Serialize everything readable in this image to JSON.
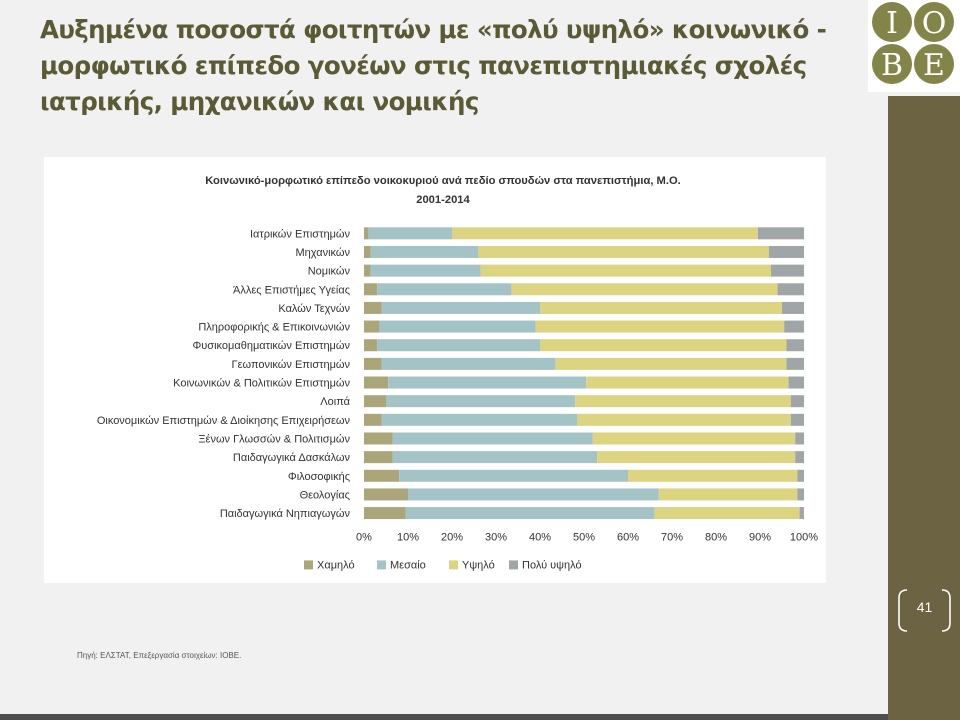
{
  "slide": {
    "title": "Αυξημένα ποσοστά φοιτητών με «πολύ υψηλό» κοινωνικό - μορφωτικό επίπεδο γονέων στις πανεπιστημιακές σχολές ιατρικής, μηχανικών και νομικής",
    "page_number": "41",
    "source": "Πηγή: ΕΛΣΤΑΤ, Επεξεργασία στοιχείων: ΙΟΒΕ.",
    "logo_text": {
      "l1": "Ι",
      "l2": "Ο",
      "l3": "Β",
      "l4": "Ε"
    }
  },
  "colors": {
    "title": "#5a5a34",
    "accent_bar": "#6c6343",
    "logo_circle": "#838548",
    "series": [
      "#aaa67a",
      "#a4c3c6",
      "#dcd480",
      "#a0a6a8"
    ]
  },
  "chart_data": {
    "type": "bar",
    "orientation": "horizontal",
    "stacked": "percent",
    "title": "Κοινωνικό-μορφωτικό επίπεδο νοικοκυριού ανά πεδίο σπουδών στα πανεπιστήμια, Μ.Ο. 2001-2014",
    "title_lines": [
      "Κοινωνικό-μορφωτικό επίπεδο νοικοκυριού ανά πεδίο σπουδών στα πανεπιστήμια, Μ.Ο.",
      "2001-2014"
    ],
    "categories": [
      "Ιατρικών Επιστημών",
      "Μηχανικών",
      "Νομικών",
      "Άλλες Επιστήμες Υγείας",
      "Καλών Τεχνών",
      "Πληροφορικής & Επικοινωνιών",
      "Φυσικομαθηματικών Επιστημών",
      "Γεωπονικών Επιστημών",
      "Κοινωνικών & Πολιτικών Επιστημών",
      "Λοιπά",
      "Οικονομικών Επιστημών & Διοίκησης Επιχειρήσεων",
      "Ξένων Γλωσσών & Πολιτισμών",
      "Παιδαγωγικά Δασκάλων",
      "Φιλοσοφικής",
      "Θεολογίας",
      "Παιδαγωγικά Νηπιαγωγών"
    ],
    "series": [
      {
        "name": "Χαμηλό",
        "values": [
          1,
          1.5,
          1.5,
          3,
          4,
          3.5,
          3,
          4,
          5.5,
          5,
          4,
          6.5,
          6.5,
          8,
          10,
          9.5
        ]
      },
      {
        "name": "Μεσαίο",
        "values": [
          19,
          24.5,
          25,
          30.5,
          36,
          35.5,
          37,
          39.5,
          45,
          43,
          44.5,
          45.5,
          46.5,
          52,
          57,
          56.5
        ]
      },
      {
        "name": "Υψηλό",
        "values": [
          69.5,
          66,
          66,
          60.5,
          55,
          56.5,
          56,
          52.5,
          46,
          49,
          48.5,
          46,
          45,
          38.5,
          31.5,
          33
        ]
      },
      {
        "name": "Πολύ υψηλό",
        "values": [
          10.5,
          8,
          7.5,
          6,
          5,
          4.5,
          4,
          4,
          3.5,
          3,
          3,
          2,
          2,
          1.5,
          1.5,
          1
        ]
      }
    ],
    "xlim": [
      0,
      100
    ],
    "ticks": [
      "0%",
      "10%",
      "20%",
      "30%",
      "40%",
      "50%",
      "60%",
      "70%",
      "80%",
      "90%",
      "100%"
    ],
    "legend_position": "bottom",
    "grid": false
  }
}
